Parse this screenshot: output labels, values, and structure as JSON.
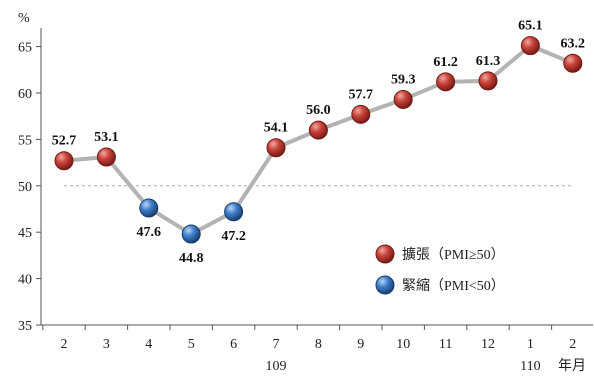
{
  "chart_data": {
    "type": "line",
    "ylabel": "%",
    "ylim": [
      35,
      67
    ],
    "yticks": [
      35,
      40,
      45,
      50,
      55,
      60,
      65
    ],
    "threshold": 50,
    "categories": [
      "2",
      "3",
      "4",
      "5",
      "6",
      "7",
      "8",
      "9",
      "10",
      "11",
      "12",
      "1",
      "2"
    ],
    "values": [
      52.7,
      53.1,
      47.6,
      44.8,
      47.2,
      54.1,
      56.0,
      57.7,
      59.3,
      61.2,
      61.3,
      65.1,
      63.2
    ],
    "value_labels": [
      "52.7",
      "53.1",
      "47.6",
      "44.8",
      "47.2",
      "54.1",
      "56.0",
      "57.7",
      "59.3",
      "61.2",
      "61.3",
      "65.1",
      "63.2"
    ],
    "year_labels": [
      "109",
      "110"
    ],
    "x_unit": "年月",
    "legend": {
      "placement": "bottom-right",
      "items": [
        {
          "label": "擴張（PMI≥50）",
          "color": "#c0392b"
        },
        {
          "label": "緊縮（PMI<50）",
          "color": "#2e6db4"
        }
      ]
    },
    "colors": {
      "line": "#b3b3b3",
      "expansion": "#c0392b",
      "contraction": "#2e6db4",
      "axis": "#555555",
      "reference": "#aaaaaa"
    }
  }
}
